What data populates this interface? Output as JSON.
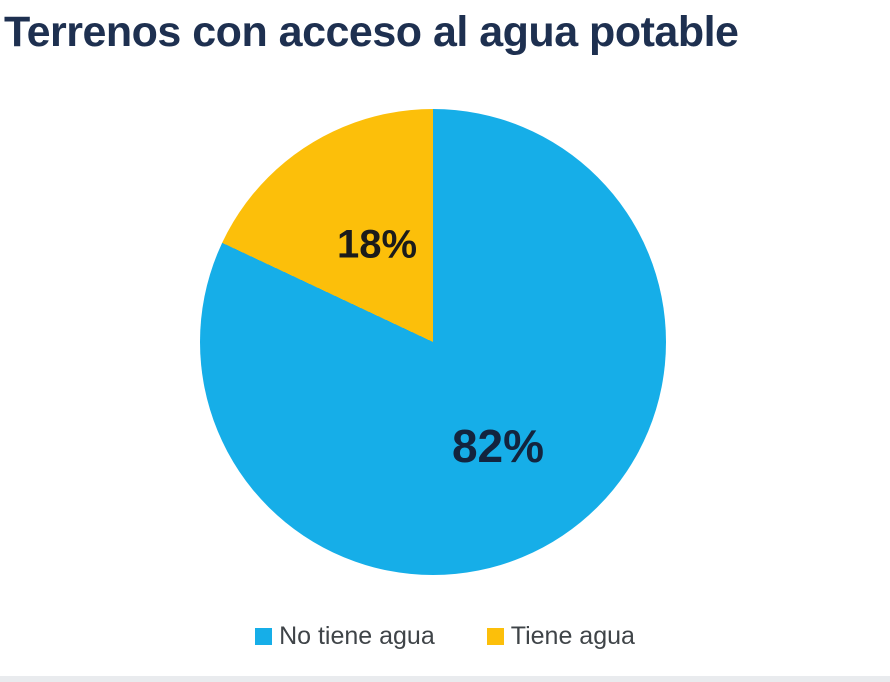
{
  "title": "Terrenos con acceso al agua potable",
  "chart_data": {
    "type": "pie",
    "title": "Terrenos con acceso al agua potable",
    "start_angle_deg": 0,
    "direction": "clockwise",
    "legend_position": "bottom",
    "slices": [
      {
        "label": "No tiene agua",
        "value": 82,
        "display": "82%",
        "color": "#16AEE8",
        "label_color": "#13243E"
      },
      {
        "label": "Tiene agua",
        "value": 18,
        "display": "18%",
        "color": "#FCBF0A",
        "label_color": "#1B1B1B"
      }
    ]
  },
  "legend": {
    "items": [
      {
        "label": "No tiene agua",
        "color": "#16AEE8"
      },
      {
        "label": "Tiene agua",
        "color": "#FCBF0A"
      }
    ]
  },
  "colors": {
    "title_text": "#1E3050",
    "background": "#FFFFFF",
    "legend_text": "#3F4448",
    "bottom_bar": "#E9EBEE"
  }
}
